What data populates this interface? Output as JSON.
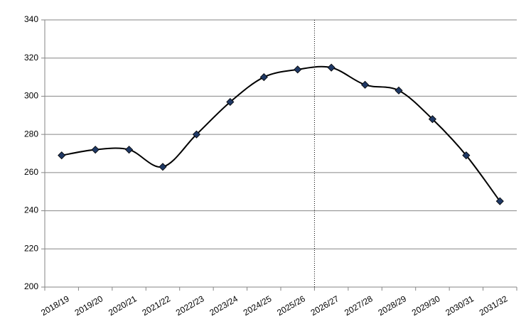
{
  "chart_data": {
    "type": "line",
    "categories": [
      "2018/19",
      "2019/20",
      "2020/21",
      "2021/22",
      "2022/23",
      "2023/24",
      "2024/25",
      "2025/26",
      "2026/27",
      "2027/28",
      "2028/29",
      "2029/30",
      "2030/31",
      "2031/32"
    ],
    "values": [
      269,
      272,
      272,
      263,
      280,
      297,
      310,
      314,
      315,
      306,
      303,
      288,
      269,
      245
    ],
    "color": "#000000",
    "marker_color": "#1f3864",
    "ylim": [
      200,
      340
    ],
    "yticks": [
      200,
      220,
      240,
      260,
      280,
      300,
      320,
      340
    ],
    "grid": true
  }
}
